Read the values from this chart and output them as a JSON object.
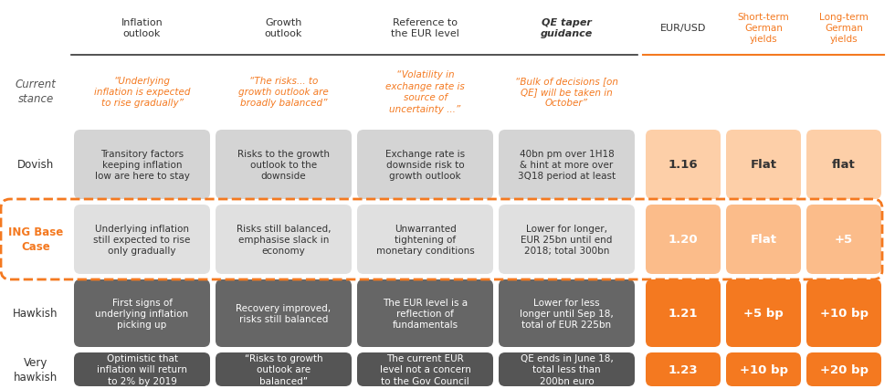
{
  "col_headers": [
    "Inflation\noutlook",
    "Growth\noutlook",
    "Reference to\nthe EUR level",
    "QE taper\nguidance"
  ],
  "right_headers": [
    "EUR/USD",
    "Short-term\nGerman\nyields",
    "Long-term\nGerman\nyields"
  ],
  "current_stance": [
    "“Underlying\ninflation is expected\nto rise gradually”",
    "“The risks... to\ngrowth outlook are\nbroadly balanced”",
    "“Volatility in\nexchange rate is\nsource of\nuncertainty ...”",
    "“Bulk of decisions [on\nQE] will be taken in\nOctober”"
  ],
  "dovish_cells": [
    "Transitory factors\nkeeping inflation\nlow are here to stay",
    "Risks to the growth\noutlook to the\ndownside",
    "Exchange rate is\ndownside risk to\ngrowth outlook",
    "40bn pm over 1H18\n& hint at more over\n3Q18 period at least"
  ],
  "ing_cells": [
    "Underlying inflation\nstill expected to rise\nonly gradually",
    "Risks still balanced,\nemphasise slack in\neconomy",
    "Unwarranted\ntightening of\nmonetary conditions",
    "Lower for longer,\nEUR 25bn until end\n2018; total 300bn"
  ],
  "hawkish_cells": [
    "First signs of\nunderlying inflation\npicking up",
    "Recovery improved,\nrisks still balanced",
    "The EUR level is a\nreflection of\nfundamentals",
    "Lower for less\nlonger until Sep 18,\ntotal of EUR 225bn"
  ],
  "vhawkish_cells": [
    "Optimistic that\ninflation will return\nto 2% by 2019",
    "“Risks to growth\noutlook are\nbalanced”",
    "The current EUR\nlevel not a concern\nto the Gov Council",
    "QE ends in June 18,\ntotal less than\n200bn euro"
  ],
  "right_values": [
    [
      "1.16",
      "Flat",
      "flat"
    ],
    [
      "1.20",
      "Flat",
      "+5"
    ],
    [
      "1.21",
      "+5 bp",
      "+10 bp"
    ],
    [
      "1.23",
      "+10 bp",
      "+20 bp"
    ]
  ],
  "orange_dark": "#F47920",
  "orange_mid": "#F89C5A",
  "orange_light": "#FBBC8A",
  "orange_pale": "#FDCFA8",
  "gray_light": "#D4D4D4",
  "gray_ing": "#E0E0E0",
  "gray_hawk": "#666666",
  "gray_vhawk": "#555555",
  "white": "#FFFFFF",
  "text_dark": "#333333",
  "text_mid": "#555555",
  "bg": "#FFFFFF"
}
